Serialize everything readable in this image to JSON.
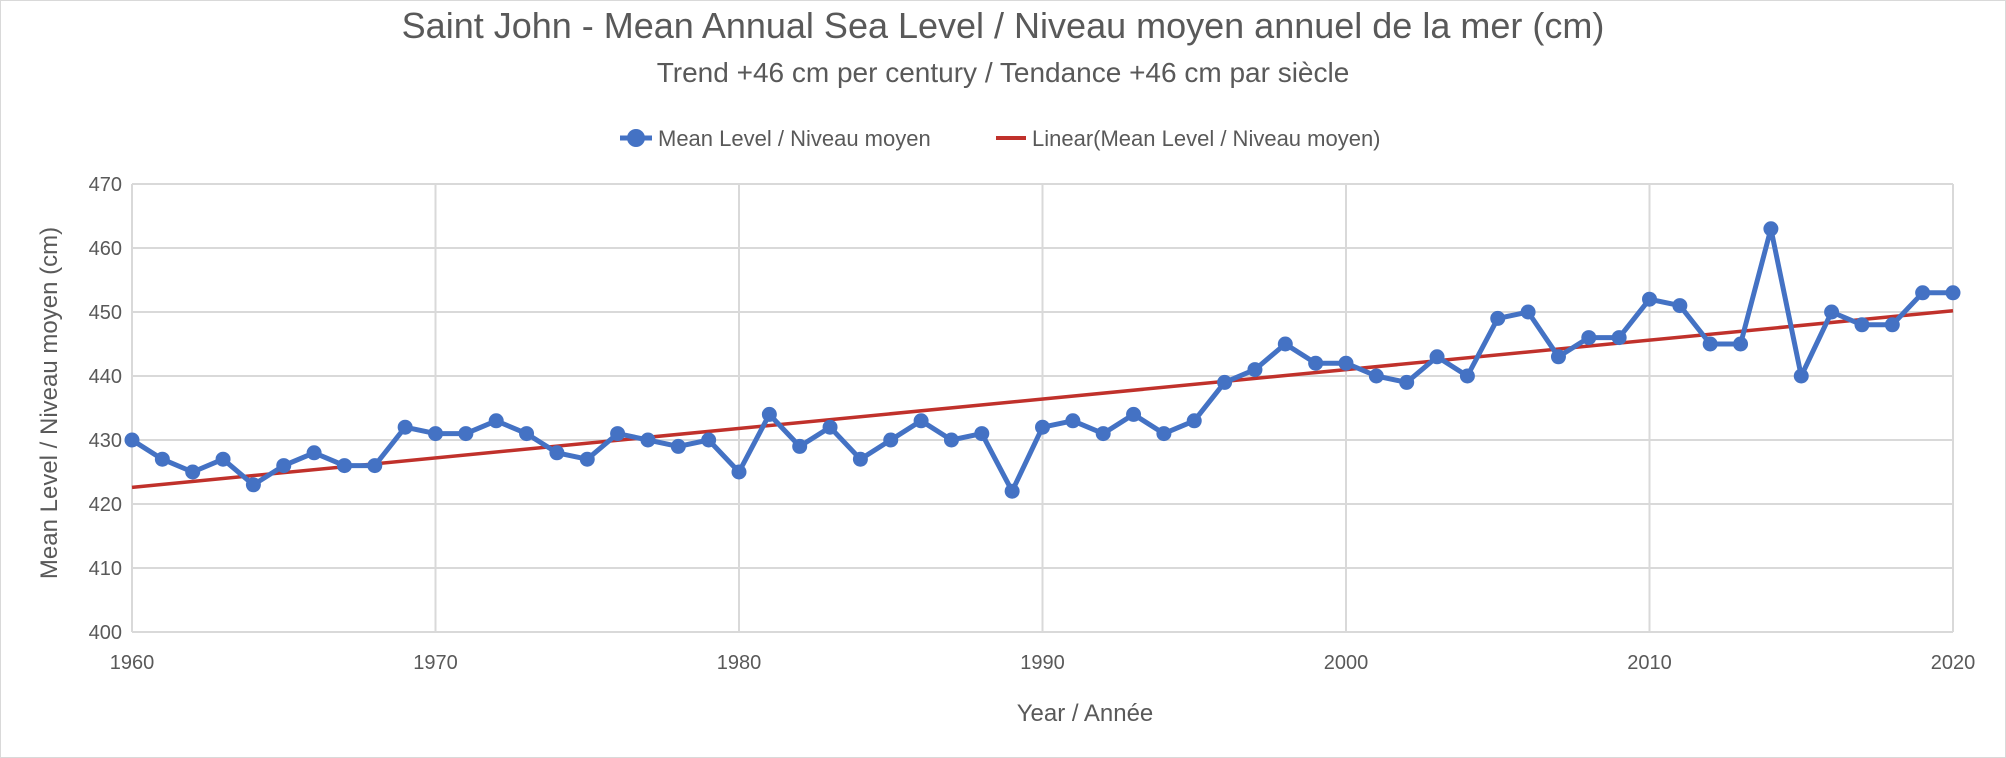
{
  "chart_data": {
    "type": "line",
    "title": "Saint John - Mean Annual Sea Level / Niveau moyen annuel de la mer (cm)",
    "subtitle": "Trend +46 cm per century / Tendance +46 cm par siècle",
    "xlabel": "Year / Année",
    "ylabel": "Mean Level / Niveau moyen (cm)",
    "xlim": [
      1960,
      2020
    ],
    "ylim": [
      400,
      470
    ],
    "x_ticks": [
      "1960",
      "1970",
      "1980",
      "1990",
      "2000",
      "2010",
      "2020"
    ],
    "y_ticks": [
      "400",
      "410",
      "420",
      "430",
      "440",
      "450",
      "460",
      "470"
    ],
    "grid": true,
    "legend_position": "top-center",
    "colors": {
      "series": "#4472c4",
      "trend": "#c0312b",
      "grid": "#d9d9d9",
      "text": "#595959"
    },
    "series": [
      {
        "name": "Mean Level  / Niveau moyen",
        "x": [
          1960,
          1961,
          1962,
          1963,
          1964,
          1965,
          1966,
          1967,
          1968,
          1969,
          1970,
          1971,
          1972,
          1973,
          1974,
          1975,
          1976,
          1977,
          1978,
          1979,
          1980,
          1981,
          1982,
          1983,
          1984,
          1985,
          1986,
          1987,
          1988,
          1989,
          1990,
          1991,
          1992,
          1993,
          1994,
          1995,
          1996,
          1997,
          1998,
          1999,
          2000,
          2001,
          2002,
          2003,
          2004,
          2005,
          2006,
          2007,
          2008,
          2009,
          2010,
          2011,
          2012,
          2013,
          2014,
          2015,
          2016,
          2017,
          2018,
          2019,
          2020
        ],
        "values": [
          430,
          427,
          425,
          427,
          423,
          426,
          428,
          426,
          426,
          432,
          431,
          431,
          433,
          431,
          428,
          427,
          431,
          430,
          429,
          430,
          425,
          434,
          429,
          432,
          427,
          430,
          433,
          430,
          431,
          422,
          432,
          433,
          431,
          434,
          431,
          433,
          439,
          441,
          445,
          442,
          442,
          440,
          439,
          443,
          440,
          449,
          450,
          443,
          446,
          446,
          452,
          451,
          445,
          445,
          463,
          440,
          450,
          448,
          448,
          453,
          453
        ]
      }
    ],
    "trendline": {
      "name": "Linear(Mean Level  / Niveau moyen)",
      "x": [
        1960,
        2020
      ],
      "values": [
        422.6,
        450.2
      ]
    }
  }
}
